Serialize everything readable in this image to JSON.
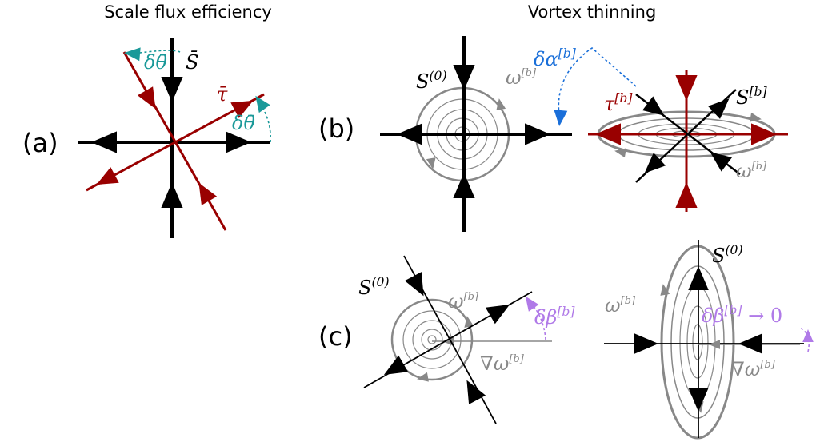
{
  "titles": [
    "Scale flux efficiency",
    "Vortex thinning"
  ],
  "panels": [
    "(a)",
    "(b)",
    "(c)"
  ],
  "labels": [
    {
      "base": "S̄"
    },
    {
      "base": "τ̄"
    },
    {
      "base": "δθ̄"
    },
    {
      "base": "δθ̄"
    },
    {
      "base": "S",
      "sup": "(0)"
    },
    {
      "base": "ω",
      "sup": "[b]"
    },
    {
      "base": "δα",
      "sup": "[b]"
    },
    {
      "base": "τ",
      "sup": "[b]"
    },
    {
      "base": "S",
      "sup": "[b]"
    },
    {
      "base": "ω",
      "sup": "[b]"
    },
    {
      "base": "S",
      "sup": "(0)"
    },
    {
      "base": "ω",
      "sup": "[b]"
    },
    {
      "base": "δβ",
      "sup": "[b]"
    },
    {
      "base": "∇ω",
      "sup": "[b]"
    },
    {
      "base": "ω",
      "sup": "[b]"
    },
    {
      "base": "S",
      "sup": "(0)"
    },
    {
      "base": "δβ",
      "sup": "[b]",
      "tail": " → 0"
    },
    {
      "base": "∇ω",
      "sup": "[b]"
    }
  ]
}
